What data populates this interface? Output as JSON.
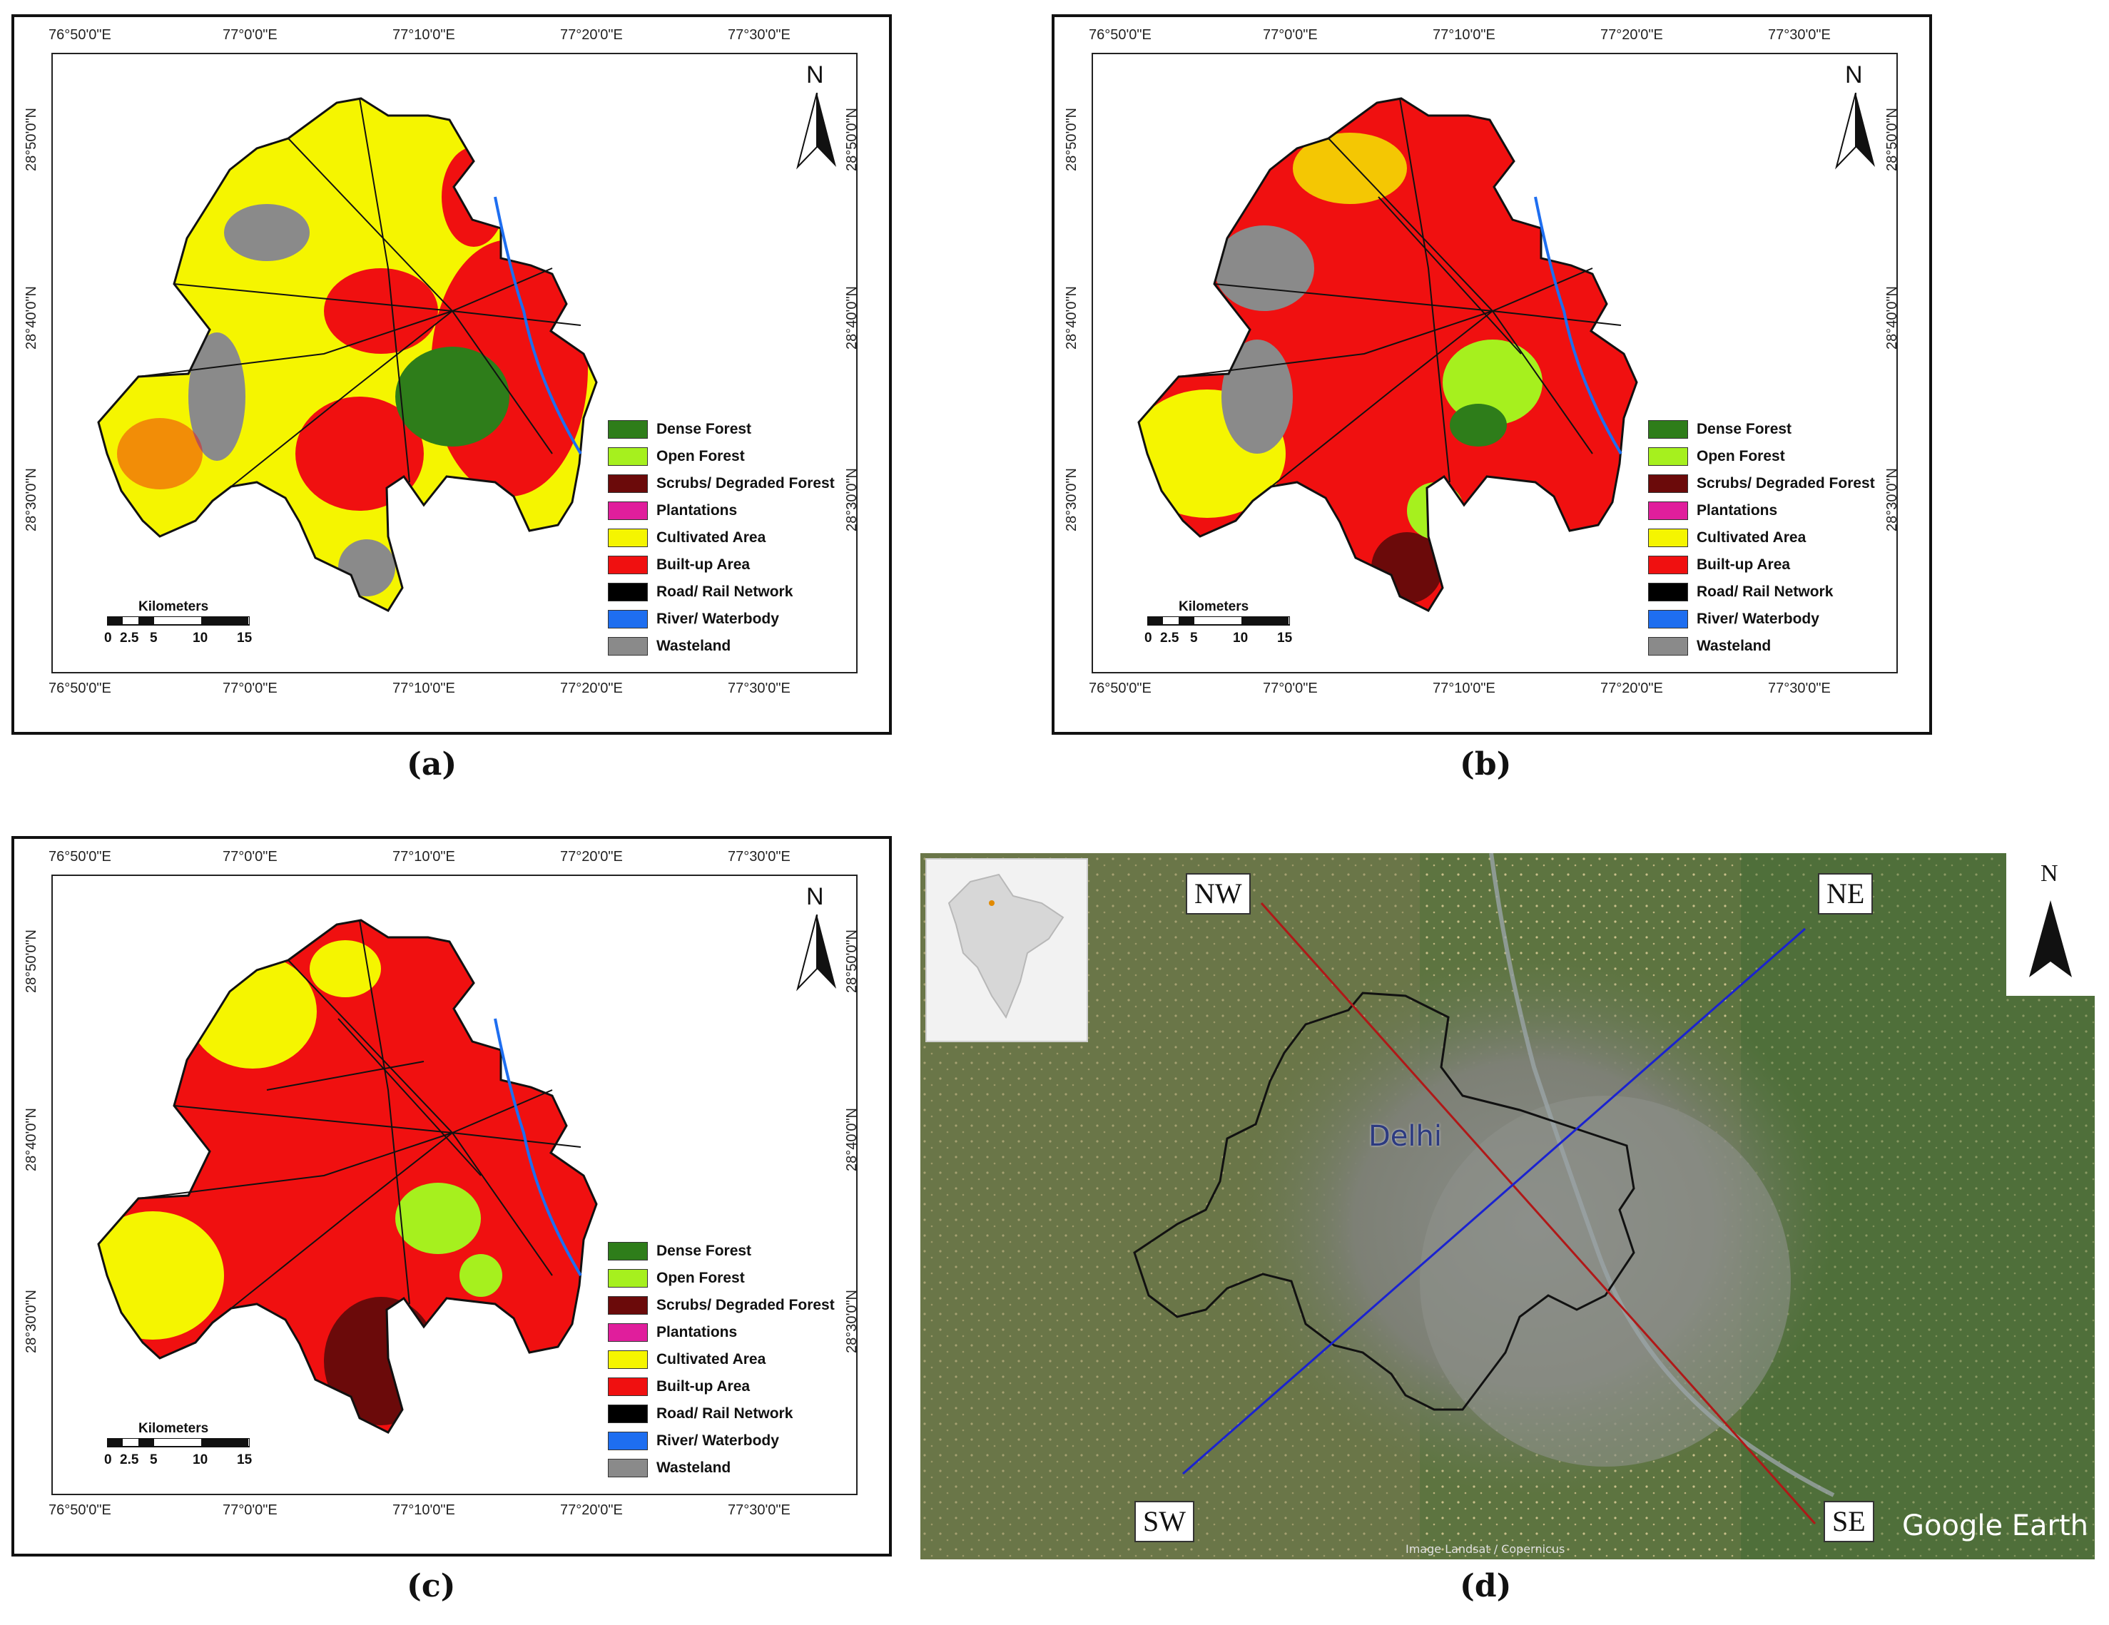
{
  "panels": [
    {
      "id": "a",
      "caption": "(a)",
      "legend_heading": "",
      "dominant": "cultivated"
    },
    {
      "id": "b",
      "caption": "(b)",
      "dominant": "mixed"
    },
    {
      "id": "c",
      "caption": "(c)",
      "dominant": "builtup"
    }
  ],
  "longitude_ticks": [
    "76°50'0\"E",
    "77°0'0\"E",
    "77°10'0\"E",
    "77°20'0\"E",
    "77°30'0\"E"
  ],
  "latitude_ticks": [
    "28°50'0\"N",
    "28°40'0\"N",
    "28°30'0\"N"
  ],
  "north_letter": "N",
  "scale": {
    "title": "Kilometers",
    "ticks": [
      "0",
      "2.5",
      "5",
      "10",
      "15"
    ]
  },
  "legend": [
    {
      "label": "Dense Forest",
      "color": "#2e7d1a"
    },
    {
      "label": "Open Forest",
      "color": "#a6f01e"
    },
    {
      "label": "Scrubs/ Degraded Forest",
      "color": "#6b0a0a"
    },
    {
      "label": "Plantations",
      "color": "#e01e9c"
    },
    {
      "label": "Cultivated Area",
      "color": "#f5f500"
    },
    {
      "label": "Built-up Area",
      "color": "#f01010"
    },
    {
      "label": "Road/ Rail Network",
      "color": "#000000"
    },
    {
      "label": "River/ Waterbody",
      "color": "#1e6ef0"
    },
    {
      "label": "Wasteland",
      "color": "#8a8a8a"
    }
  ],
  "satellite": {
    "caption": "(d)",
    "city": "Delhi",
    "directions": [
      "NW",
      "NE",
      "SW",
      "SE"
    ],
    "north_letter": "N",
    "logo": "Google Earth",
    "credit": "Image Landsat / Copernicus",
    "line_colors": {
      "nw_se": "#b01818",
      "sw_ne": "#1a22d0"
    }
  }
}
